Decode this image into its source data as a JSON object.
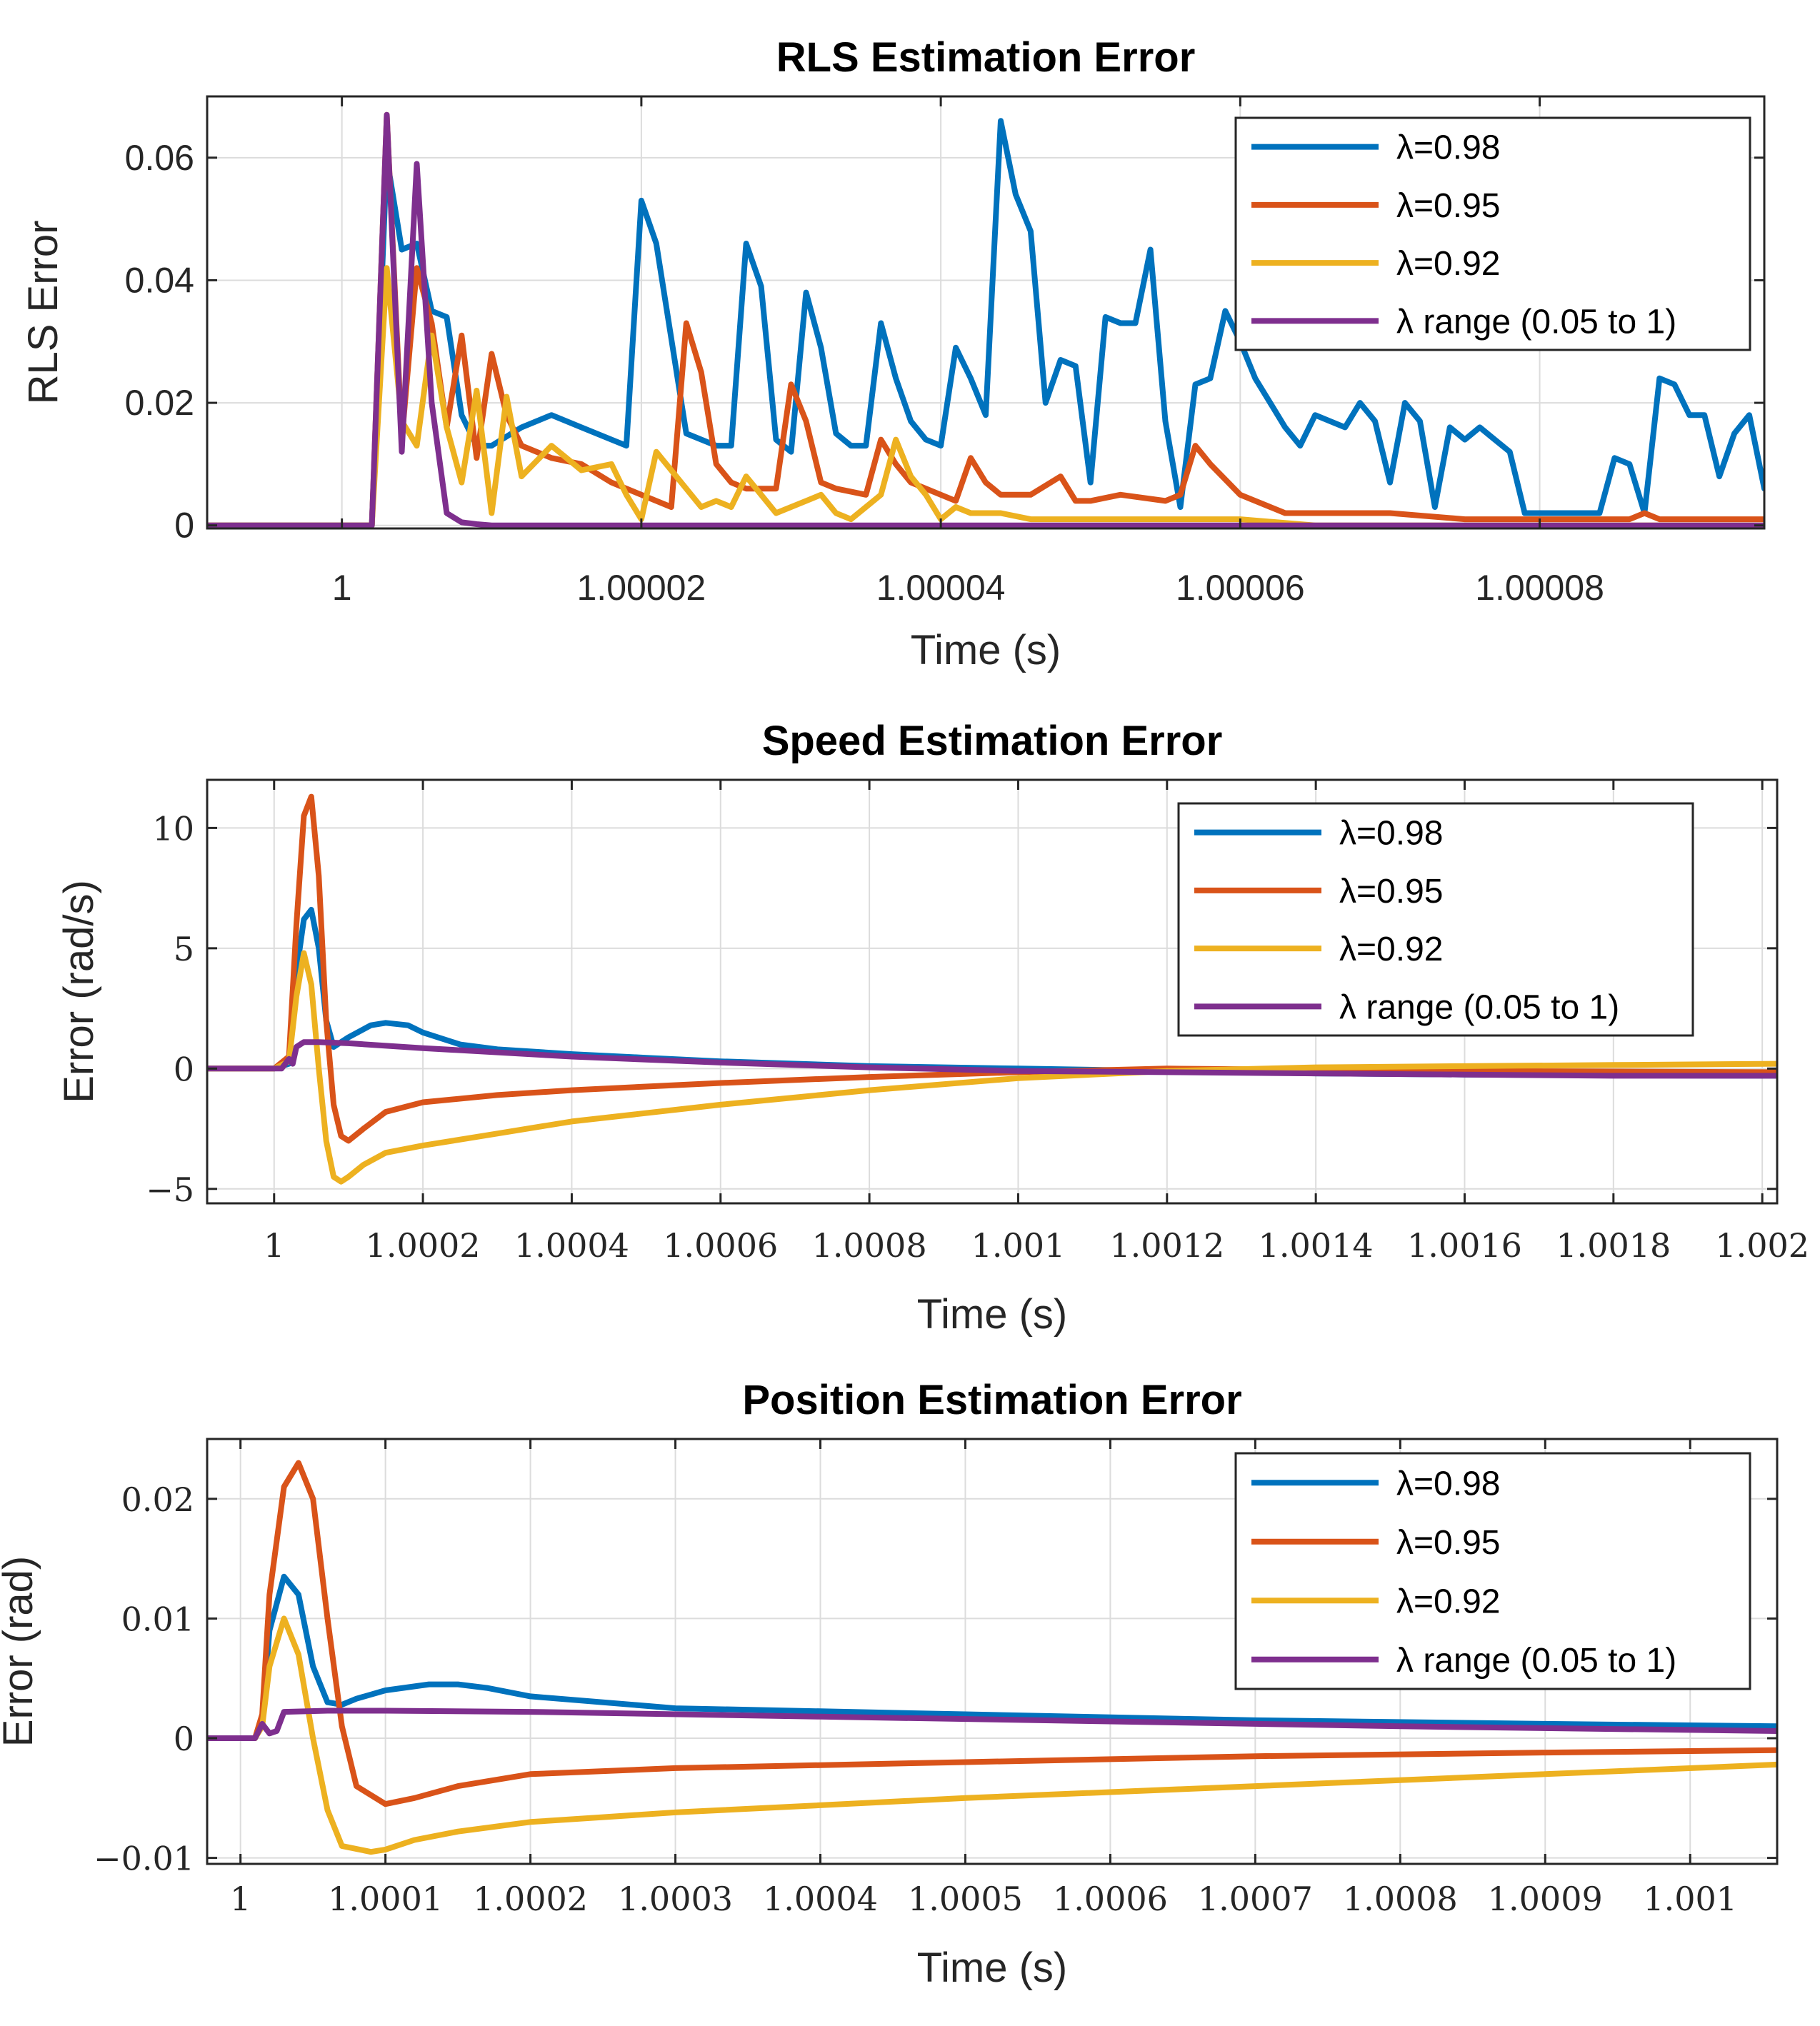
{
  "colors": {
    "lambda_098": "#0072BD",
    "lambda_095": "#D95319",
    "lambda_092": "#EDB120",
    "lambda_range": "#7E2F8E"
  },
  "chart_data": [
    {
      "type": "line",
      "title": "RLS Estimation Error",
      "xlabel": "Time (s)",
      "ylabel": "RLS Error",
      "xlim": [
        0.999991,
        1.000095
      ],
      "ylim": [
        -0.0005,
        0.07
      ],
      "xticks": [
        1,
        1.00002,
        1.00004,
        1.00006,
        1.00008
      ],
      "xtick_labels": [
        "1",
        "1.00002",
        "1.00004",
        "1.00006",
        "1.00008"
      ],
      "yticks": [
        0,
        0.02,
        0.04,
        0.06
      ],
      "ytick_labels": [
        "0",
        "0.02",
        "0.04",
        "0.06"
      ],
      "grid": true,
      "legend_position": "top-right",
      "series": [
        {
          "name": "λ=0.98",
          "color_key": "lambda_098",
          "x": [
            0.999991,
            1.000002,
            1.000003,
            1.000004,
            1.000005,
            1.000006,
            1.000007,
            1.000008,
            1.000009,
            1.00001,
            1.000012,
            1.000014,
            1.000016,
            1.000018,
            1.000019,
            1.00002,
            1.000021,
            1.000023,
            1.000025,
            1.000026,
            1.000027,
            1.000028,
            1.000029,
            1.00003,
            1.000031,
            1.000032,
            1.000033,
            1.000034,
            1.000035,
            1.000036,
            1.000037,
            1.000038,
            1.000039,
            1.00004,
            1.000041,
            1.000042,
            1.000043,
            1.000044,
            1.000045,
            1.000046,
            1.000047,
            1.000048,
            1.000049,
            1.00005,
            1.000051,
            1.000052,
            1.000053,
            1.000054,
            1.000055,
            1.000056,
            1.000057,
            1.000058,
            1.000059,
            1.00006,
            1.000061,
            1.000062,
            1.000063,
            1.000064,
            1.000065,
            1.000066,
            1.000067,
            1.000068,
            1.000069,
            1.00007,
            1.000071,
            1.000072,
            1.000073,
            1.000074,
            1.000075,
            1.000076,
            1.000077,
            1.000078,
            1.000079,
            1.00008,
            1.000081,
            1.000082,
            1.000083,
            1.000084,
            1.000085,
            1.000086,
            1.000087,
            1.000088,
            1.000089,
            1.00009,
            1.000091,
            1.000092,
            1.000093,
            1.000094,
            1.000095
          ],
          "y": [
            0,
            0,
            0.06,
            0.045,
            0.046,
            0.035,
            0.034,
            0.018,
            0.013,
            0.013,
            0.016,
            0.018,
            0.016,
            0.014,
            0.013,
            0.053,
            0.046,
            0.015,
            0.013,
            0.013,
            0.046,
            0.039,
            0.014,
            0.012,
            0.038,
            0.029,
            0.015,
            0.013,
            0.013,
            0.033,
            0.024,
            0.017,
            0.014,
            0.013,
            0.029,
            0.024,
            0.018,
            0.066,
            0.054,
            0.048,
            0.02,
            0.027,
            0.026,
            0.007,
            0.034,
            0.033,
            0.033,
            0.045,
            0.017,
            0.003,
            0.023,
            0.024,
            0.035,
            0.03,
            0.024,
            0.02,
            0.016,
            0.013,
            0.018,
            0.017,
            0.016,
            0.02,
            0.017,
            0.007,
            0.02,
            0.017,
            0.003,
            0.016,
            0.014,
            0.016,
            0.014,
            0.012,
            0.002,
            0.002,
            0.002,
            0.002,
            0.002,
            0.002,
            0.011,
            0.01,
            0.002,
            0.024,
            0.023,
            0.018,
            0.018,
            0.008,
            0.015,
            0.018,
            0.006
          ]
        },
        {
          "name": "λ=0.95",
          "color_key": "lambda_095",
          "x": [
            0.999991,
            1.000002,
            1.000003,
            1.000004,
            1.000005,
            1.000006,
            1.000007,
            1.000008,
            1.000009,
            1.00001,
            1.000011,
            1.000012,
            1.000014,
            1.000016,
            1.000018,
            1.00002,
            1.000022,
            1.000023,
            1.000024,
            1.000025,
            1.000026,
            1.000027,
            1.000029,
            1.00003,
            1.000031,
            1.000032,
            1.000033,
            1.000035,
            1.000036,
            1.000037,
            1.000038,
            1.000039,
            1.00004,
            1.000041,
            1.000042,
            1.000043,
            1.000044,
            1.000046,
            1.000048,
            1.000049,
            1.00005,
            1.000052,
            1.000055,
            1.000056,
            1.000057,
            1.000058,
            1.00006,
            1.000063,
            1.000067,
            1.00007,
            1.000075,
            1.00008,
            1.000086,
            1.000087,
            1.000088,
            1.00009,
            1.000095
          ],
          "y": [
            0,
            0,
            0.067,
            0.014,
            0.042,
            0.033,
            0.016,
            0.031,
            0.011,
            0.028,
            0.018,
            0.013,
            0.011,
            0.01,
            0.007,
            0.005,
            0.003,
            0.033,
            0.025,
            0.01,
            0.007,
            0.006,
            0.006,
            0.023,
            0.017,
            0.007,
            0.006,
            0.005,
            0.014,
            0.01,
            0.007,
            0.006,
            0.005,
            0.004,
            0.011,
            0.007,
            0.005,
            0.005,
            0.008,
            0.004,
            0.004,
            0.005,
            0.004,
            0.005,
            0.013,
            0.01,
            0.005,
            0.002,
            0.002,
            0.002,
            0.001,
            0.001,
            0.001,
            0.002,
            0.001,
            0.001,
            0.001
          ]
        },
        {
          "name": "λ=0.92",
          "color_key": "lambda_092",
          "x": [
            0.999991,
            1.000002,
            1.000003,
            1.000004,
            1.000005,
            1.000006,
            1.000007,
            1.000008,
            1.000009,
            1.00001,
            1.000011,
            1.000012,
            1.000014,
            1.000016,
            1.000018,
            1.000019,
            1.00002,
            1.000021,
            1.000022,
            1.000024,
            1.000025,
            1.000026,
            1.000027,
            1.000028,
            1.000029,
            1.000031,
            1.000032,
            1.000033,
            1.000034,
            1.000035,
            1.000036,
            1.000037,
            1.000038,
            1.000039,
            1.00004,
            1.000041,
            1.000042,
            1.000044,
            1.000046,
            1.00005,
            1.000055,
            1.00006,
            1.000065,
            1.000095
          ],
          "y": [
            0,
            0,
            0.042,
            0.017,
            0.013,
            0.031,
            0.016,
            0.007,
            0.022,
            0.002,
            0.021,
            0.008,
            0.013,
            0.009,
            0.01,
            0.005,
            0.001,
            0.012,
            0.009,
            0.003,
            0.004,
            0.003,
            0.008,
            0.005,
            0.002,
            0.004,
            0.005,
            0.002,
            0.001,
            0.003,
            0.005,
            0.014,
            0.008,
            0.005,
            0.001,
            0.003,
            0.002,
            0.002,
            0.001,
            0.001,
            0.001,
            0.001,
            0,
            0
          ]
        },
        {
          "name": "λ range (0.05 to 1)",
          "color_key": "lambda_range",
          "x": [
            0.999991,
            1.000002,
            1.000003,
            1.000004,
            1.000005,
            1.000006,
            1.000007,
            1.000008,
            1.000009,
            1.00001,
            1.000095
          ],
          "y": [
            0,
            0,
            0.067,
            0.012,
            0.059,
            0.02,
            0.002,
            0.0005,
            0.0002,
            0,
            0
          ]
        }
      ]
    },
    {
      "type": "line",
      "title": "Speed Estimation Error",
      "xlabel": "Time (s)",
      "ylabel": "Error (rad/s)",
      "xlim": [
        0.99991,
        1.00202
      ],
      "ylim": [
        -5.6,
        12
      ],
      "xticks": [
        1,
        1.0002,
        1.0004,
        1.0006,
        1.0008,
        1.001,
        1.0012,
        1.0014,
        1.0016,
        1.0018,
        1.002
      ],
      "xtick_labels": [
        "1",
        "1.0002",
        "1.0004",
        "1.0006",
        "1.0008",
        "1.001",
        "1.0012",
        "1.0014",
        "1.0016",
        "1.0018",
        "1.002"
      ],
      "yticks": [
        -5,
        0,
        5,
        10
      ],
      "ytick_labels": [
        "−5",
        "0",
        "5",
        "10"
      ],
      "grid": true,
      "legend_position": "top-right",
      "series": [
        {
          "name": "λ=0.98",
          "color_key": "lambda_098",
          "x": [
            0.99991,
            1.0,
            1.00002,
            1.00003,
            1.00004,
            1.00005,
            1.00006,
            1.00007,
            1.00008,
            1.0001,
            1.00013,
            1.00015,
            1.00018,
            1.0002,
            1.00025,
            1.0003,
            1.0004,
            1.0005,
            1.0006,
            1.0008,
            1.001,
            1.0012,
            1.0014,
            1.0016,
            1.0018,
            1.00202
          ],
          "y": [
            0,
            0,
            0.2,
            4.0,
            6.2,
            6.6,
            5.0,
            2.0,
            0.9,
            1.3,
            1.8,
            1.9,
            1.8,
            1.5,
            1.0,
            0.8,
            0.6,
            0.45,
            0.3,
            0.1,
            0.0,
            -0.1,
            -0.2,
            -0.25,
            -0.28,
            -0.3
          ]
        },
        {
          "name": "λ=0.95",
          "color_key": "lambda_095",
          "x": [
            0.99991,
            1.0,
            1.00002,
            1.00003,
            1.00004,
            1.00005,
            1.00006,
            1.00007,
            1.00008,
            1.00009,
            1.0001,
            1.00012,
            1.00015,
            1.0002,
            1.0003,
            1.0004,
            1.0006,
            1.0008,
            1.001,
            1.0012,
            1.0014,
            1.0016,
            1.0018,
            1.00202
          ],
          "y": [
            0,
            0,
            0.5,
            6.0,
            10.5,
            11.3,
            8.0,
            2.0,
            -1.5,
            -2.8,
            -3.0,
            -2.5,
            -1.8,
            -1.4,
            -1.1,
            -0.9,
            -0.6,
            -0.35,
            -0.15,
            0.0,
            -0.05,
            -0.1,
            -0.12,
            -0.15
          ]
        },
        {
          "name": "λ=0.92",
          "color_key": "lambda_092",
          "x": [
            0.99991,
            1.0,
            1.00002,
            1.00003,
            1.00004,
            1.00005,
            1.00006,
            1.00007,
            1.00008,
            1.00009,
            1.0001,
            1.00012,
            1.00015,
            1.0002,
            1.0003,
            1.0004,
            1.0006,
            1.0008,
            1.001,
            1.0012,
            1.0014,
            1.0016,
            1.0018,
            1.00202
          ],
          "y": [
            0,
            0,
            0.3,
            3.0,
            4.8,
            3.5,
            0.0,
            -3.0,
            -4.5,
            -4.7,
            -4.5,
            -4.0,
            -3.5,
            -3.2,
            -2.7,
            -2.2,
            -1.5,
            -0.9,
            -0.4,
            -0.1,
            0.05,
            0.1,
            0.15,
            0.2
          ]
        },
        {
          "name": "λ range (0.05 to 1)",
          "color_key": "lambda_range",
          "x": [
            0.99991,
            1.00001,
            1.00002,
            1.000025,
            1.00003,
            1.00004,
            1.00006,
            1.0001,
            1.0002,
            1.0004,
            1.0006,
            1.0008,
            1.001,
            1.0012,
            1.0014,
            1.0016,
            1.0018,
            1.00202
          ],
          "y": [
            0,
            0,
            0.4,
            0.2,
            0.9,
            1.1,
            1.1,
            1.05,
            0.85,
            0.5,
            0.25,
            0.05,
            -0.1,
            -0.15,
            -0.2,
            -0.25,
            -0.3,
            -0.3
          ]
        }
      ]
    },
    {
      "type": "line",
      "title": "Position Estimation Error",
      "xlabel": "Time (s)",
      "ylabel": "Error (rad)",
      "xlim": [
        0.999977,
        1.00106
      ],
      "ylim": [
        -0.0105,
        0.025
      ],
      "xticks": [
        1,
        1.0001,
        1.0002,
        1.0003,
        1.0004,
        1.0005,
        1.0006,
        1.0007,
        1.0008,
        1.0009,
        1.001
      ],
      "xtick_labels": [
        "1",
        "1.0001",
        "1.0002",
        "1.0003",
        "1.0004",
        "1.0005",
        "1.0006",
        "1.0007",
        "1.0008",
        "1.0009",
        "1.001"
      ],
      "yticks": [
        -0.01,
        0,
        0.01,
        0.02
      ],
      "ytick_labels": [
        "−0.01",
        "0",
        "0.01",
        "0.02"
      ],
      "grid": true,
      "legend_position": "top-right",
      "series": [
        {
          "name": "λ=0.98",
          "color_key": "lambda_098",
          "x": [
            0.999977,
            1.00001,
            1.000015,
            1.00002,
            1.00003,
            1.00004,
            1.00005,
            1.00006,
            1.00007,
            1.00008,
            1.0001,
            1.00013,
            1.00015,
            1.00017,
            1.0002,
            1.0003,
            1.0005,
            1.0007,
            1.0009,
            1.00106
          ],
          "y": [
            0,
            0,
            0.0015,
            0.009,
            0.0135,
            0.012,
            0.006,
            0.003,
            0.0028,
            0.0033,
            0.004,
            0.0045,
            0.0045,
            0.0042,
            0.0035,
            0.0025,
            0.002,
            0.0015,
            0.0012,
            0.001
          ]
        },
        {
          "name": "λ=0.95",
          "color_key": "lambda_095",
          "x": [
            0.999977,
            1.00001,
            1.000015,
            1.00002,
            1.00003,
            1.00004,
            1.00005,
            1.00006,
            1.00007,
            1.00008,
            1.0001,
            1.00012,
            1.00015,
            1.0002,
            1.0003,
            1.0005,
            1.0007,
            1.0009,
            1.00106
          ],
          "y": [
            0,
            0,
            0.002,
            0.012,
            0.021,
            0.023,
            0.02,
            0.01,
            0.001,
            -0.004,
            -0.0055,
            -0.005,
            -0.004,
            -0.003,
            -0.0025,
            -0.002,
            -0.0015,
            -0.0012,
            -0.001
          ]
        },
        {
          "name": "λ=0.92",
          "color_key": "lambda_092",
          "x": [
            0.999977,
            1.00001,
            1.000015,
            1.00002,
            1.00003,
            1.00004,
            1.00005,
            1.00006,
            1.00007,
            1.00009,
            1.0001,
            1.00012,
            1.00015,
            1.0002,
            1.0003,
            1.0005,
            1.0007,
            1.0009,
            1.00106
          ],
          "y": [
            0,
            0,
            0.001,
            0.006,
            0.01,
            0.007,
            0.0,
            -0.006,
            -0.009,
            -0.0095,
            -0.0093,
            -0.0085,
            -0.0078,
            -0.007,
            -0.0062,
            -0.005,
            -0.004,
            -0.003,
            -0.0022
          ]
        },
        {
          "name": "λ range (0.05 to 1)",
          "color_key": "lambda_range",
          "x": [
            0.999977,
            1.00001,
            1.000015,
            1.00002,
            1.000025,
            1.00003,
            1.00006,
            1.0001,
            1.0002,
            1.0004,
            1.0006,
            1.0008,
            1.00106
          ],
          "y": [
            0,
            0,
            0.0012,
            0.0004,
            0.0006,
            0.0022,
            0.0023,
            0.0023,
            0.0022,
            0.0018,
            0.0014,
            0.001,
            0.0006
          ]
        }
      ]
    }
  ]
}
